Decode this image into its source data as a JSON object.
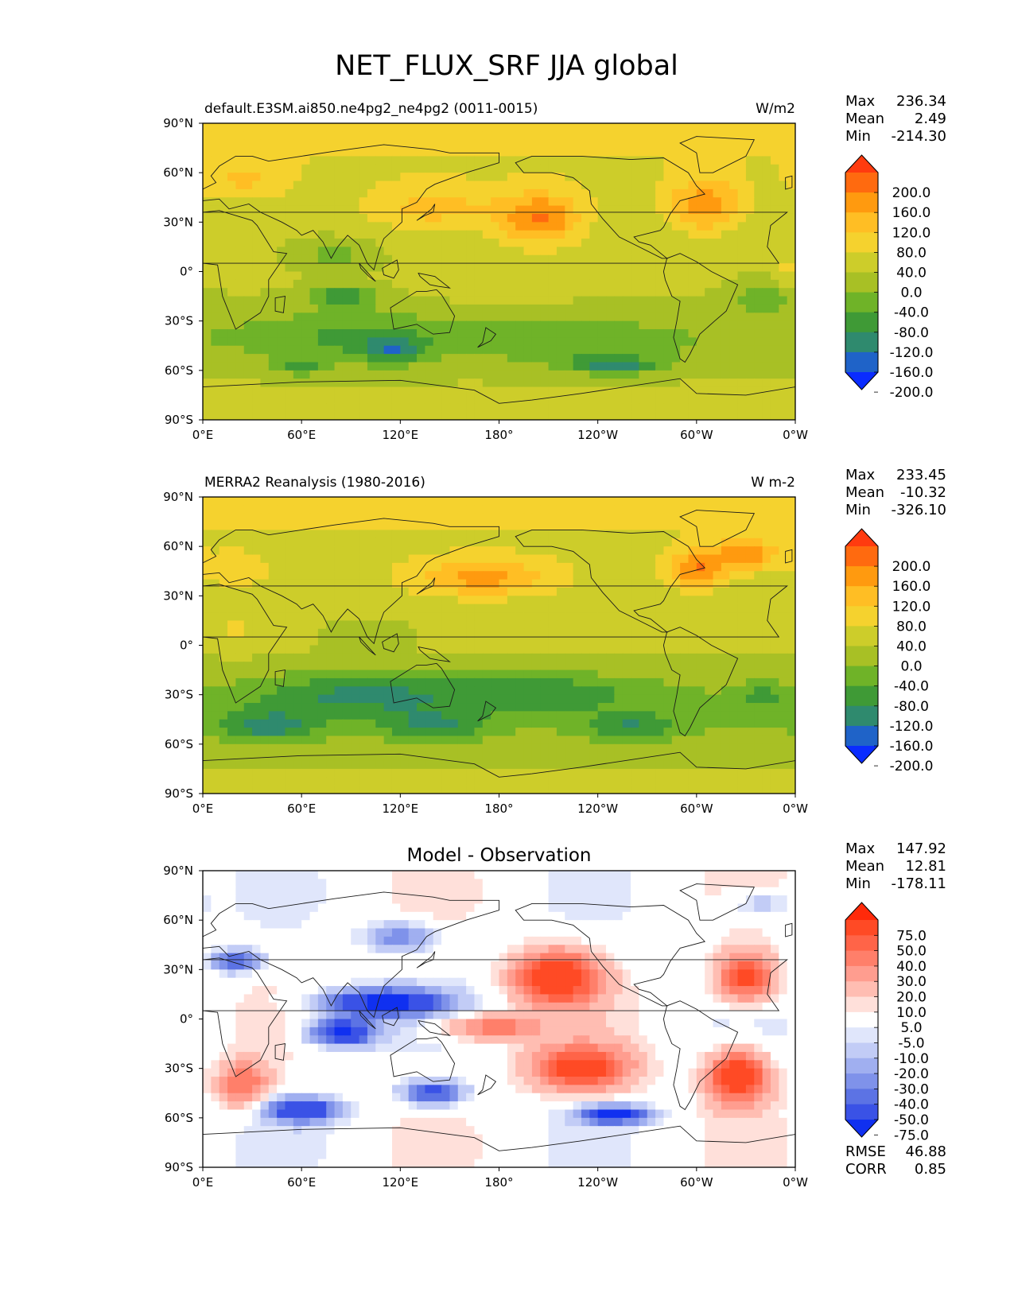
{
  "figure": {
    "title": "NET_FLUX_SRF JJA global"
  },
  "chart_data": [
    {
      "type": "heatmap",
      "panel": "test",
      "left_title": "default.E3SM.ai850.ne4pg2_ne4pg2 (0011-0015)",
      "center_title": "",
      "units": "W/m2",
      "stats": {
        "max_label": "Max",
        "max": "236.34",
        "mean_label": "Mean",
        "mean": "2.49",
        "min_label": "Min",
        "min": "-214.30"
      },
      "extra_stats": [],
      "xticks": [
        "0°E",
        "60°E",
        "120°E",
        "180°",
        "120°W",
        "60°W",
        "0°W"
      ],
      "yticks": [
        "90°N",
        "60°N",
        "30°N",
        "0°",
        "30°S",
        "60°S",
        "90°S"
      ],
      "xlim": [
        0,
        360
      ],
      "ylim": [
        -90,
        90
      ],
      "colorbar": {
        "labels": [
          "200.0",
          "160.0",
          "120.0",
          "80.0",
          "40.0",
          "0.0",
          "-40.0",
          "-80.0",
          "-120.0",
          "-160.0",
          "-200.0"
        ],
        "colors": [
          "#ff3b0f",
          "#ff6a0f",
          "#ff9a0f",
          "#ffbe24",
          "#f5d22e",
          "#cdcd2a",
          "#a8c025",
          "#6fb328",
          "#3f9a36",
          "#2f8a6e",
          "#1f63c8",
          "#0a2cff"
        ]
      },
      "field": "test"
    },
    {
      "type": "heatmap",
      "panel": "reference",
      "left_title": "MERRA2 Reanalysis (1980-2016)",
      "center_title": "",
      "units": "W m-2",
      "stats": {
        "max_label": "Max",
        "max": "233.45",
        "mean_label": "Mean",
        "mean": "-10.32",
        "min_label": "Min",
        "min": "-326.10"
      },
      "extra_stats": [],
      "xticks": [
        "0°E",
        "60°E",
        "120°E",
        "180°",
        "120°W",
        "60°W",
        "0°W"
      ],
      "yticks": [
        "90°N",
        "60°N",
        "30°N",
        "0°",
        "30°S",
        "60°S",
        "90°S"
      ],
      "xlim": [
        0,
        360
      ],
      "ylim": [
        -90,
        90
      ],
      "colorbar": {
        "labels": [
          "200.0",
          "160.0",
          "120.0",
          "80.0",
          "40.0",
          "0.0",
          "-40.0",
          "-80.0",
          "-120.0",
          "-160.0",
          "-200.0"
        ],
        "colors": [
          "#ff3b0f",
          "#ff6a0f",
          "#ff9a0f",
          "#ffbe24",
          "#f5d22e",
          "#cdcd2a",
          "#a8c025",
          "#6fb328",
          "#3f9a36",
          "#2f8a6e",
          "#1f63c8",
          "#0a2cff"
        ]
      },
      "field": "reference"
    },
    {
      "type": "heatmap",
      "panel": "difference",
      "left_title": "",
      "center_title": "Model - Observation",
      "units": "",
      "stats": {
        "max_label": "Max",
        "max": "147.92",
        "mean_label": "Mean",
        "mean": "12.81",
        "min_label": "Min",
        "min": "-178.11"
      },
      "extra_stats": [
        {
          "label": "RMSE",
          "value": "46.88"
        },
        {
          "label": "CORR",
          "value": "0.85"
        }
      ],
      "xticks": [
        "0°E",
        "60°E",
        "120°E",
        "180°",
        "120°W",
        "60°W",
        "0°W"
      ],
      "yticks": [
        "90°N",
        "60°N",
        "30°N",
        "0°",
        "30°S",
        "60°S",
        "90°S"
      ],
      "xlim": [
        0,
        360
      ],
      "ylim": [
        -90,
        90
      ],
      "colorbar": {
        "labels": [
          "75.0",
          "50.0",
          "40.0",
          "30.0",
          "20.0",
          "10.0",
          "5.0",
          "-5.0",
          "-10.0",
          "-20.0",
          "-30.0",
          "-40.0",
          "-50.0",
          "-75.0"
        ],
        "colors": [
          "#ff2a0a",
          "#ff4a25",
          "#ff6448",
          "#ff7f6a",
          "#ff9d8f",
          "#ffbdb2",
          "#ffe0da",
          "#ffffff",
          "#e0e6fb",
          "#c2ccf6",
          "#a0aff0",
          "#7f92ea",
          "#5c73e4",
          "#3a52e6",
          "#1030f0"
        ]
      },
      "field": "difference"
    }
  ]
}
